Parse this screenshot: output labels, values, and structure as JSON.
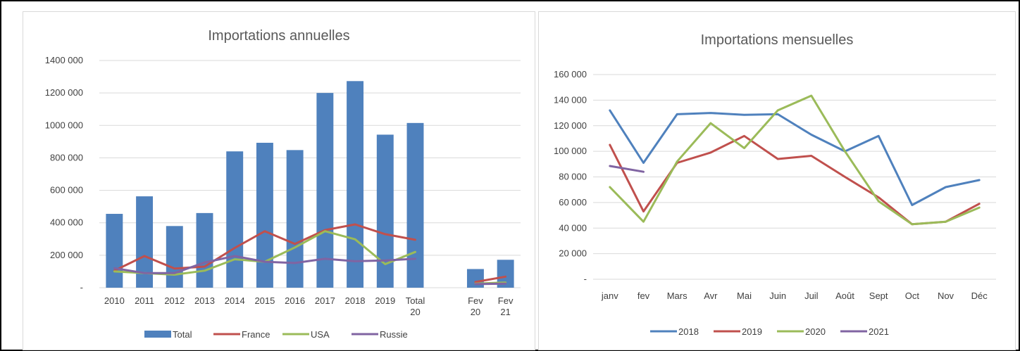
{
  "chart_data": [
    {
      "type": "bar",
      "title": "Importations annuelles",
      "categories": [
        "2010",
        "2011",
        "2012",
        "2013",
        "2014",
        "2015",
        "2016",
        "2017",
        "2018",
        "2019",
        "Total 20",
        "",
        "Fev 20",
        "Fev 21"
      ],
      "category_labels": [
        [
          "2010"
        ],
        [
          "2011"
        ],
        [
          "2012"
        ],
        [
          "2013"
        ],
        [
          "2014"
        ],
        [
          "2015"
        ],
        [
          "2016"
        ],
        [
          "2017"
        ],
        [
          "2018"
        ],
        [
          "2019"
        ],
        [
          "Total",
          "20"
        ],
        [
          ""
        ],
        [
          "Fev",
          "20"
        ],
        [
          "Fev",
          "21"
        ]
      ],
      "ylim": [
        0,
        1400000
      ],
      "yticks": [
        0,
        200000,
        400000,
        600000,
        800000,
        1000000,
        1200000,
        1400000
      ],
      "ytick_labels": [
        "-",
        "200 000",
        "400 000",
        "600 000",
        "800 000",
        "1000 000",
        "1200 000",
        "1400 000"
      ],
      "grid": true,
      "legend": "bottom",
      "series": [
        {
          "name": "Total",
          "type": "bar",
          "color": "#4f81bd",
          "values": [
            455000,
            563000,
            380000,
            460000,
            840000,
            893000,
            848000,
            1200000,
            1273000,
            943000,
            1015000,
            null,
            115000,
            172000
          ]
        },
        {
          "name": "France",
          "type": "line",
          "color": "#c0504d",
          "values": [
            105000,
            195000,
            118000,
            130000,
            245000,
            348000,
            270000,
            355000,
            390000,
            330000,
            295000,
            null,
            35000,
            68000
          ]
        },
        {
          "name": "USA",
          "type": "line",
          "color": "#9bbb59",
          "values": [
            100000,
            90000,
            80000,
            105000,
            175000,
            160000,
            248000,
            348000,
            298000,
            145000,
            220000,
            null,
            25000,
            32000
          ]
        },
        {
          "name": "Russie",
          "type": "line",
          "color": "#8064a2",
          "values": [
            120000,
            90000,
            90000,
            155000,
            195000,
            160000,
            152000,
            178000,
            163000,
            168000,
            178000,
            null,
            22000,
            25000
          ]
        }
      ]
    },
    {
      "type": "line",
      "title": "Importations mensuelles",
      "categories": [
        "janv",
        "fev",
        "Mars",
        "Avr",
        "Mai",
        "Juin",
        "Juil",
        "Août",
        "Sept",
        "Oct",
        "Nov",
        "Déc"
      ],
      "ylim": [
        0,
        160000
      ],
      "yticks": [
        0,
        20000,
        40000,
        60000,
        80000,
        100000,
        120000,
        140000,
        160000
      ],
      "ytick_labels": [
        "-",
        "20 000",
        "40 000",
        "60 000",
        "80 000",
        "100 000",
        "120 000",
        "140 000",
        "160 000"
      ],
      "grid": true,
      "legend": "bottom",
      "series": [
        {
          "name": "2018",
          "color": "#4f81bd",
          "values": [
            132000,
            91000,
            129000,
            130000,
            128500,
            129000,
            113000,
            100000,
            112000,
            58000,
            72000,
            77500
          ]
        },
        {
          "name": "2019",
          "color": "#c0504d",
          "values": [
            105000,
            53000,
            91000,
            99000,
            112000,
            94000,
            96500,
            80000,
            64000,
            43000,
            45000,
            59000
          ]
        },
        {
          "name": "2020",
          "color": "#9bbb59",
          "values": [
            72000,
            45000,
            92000,
            122000,
            102500,
            132000,
            143500,
            100000,
            61000,
            43000,
            45000,
            56000
          ]
        },
        {
          "name": "2021",
          "color": "#8064a2",
          "values": [
            88500,
            84000,
            null,
            null,
            null,
            null,
            null,
            null,
            null,
            null,
            null,
            null
          ]
        }
      ]
    }
  ]
}
